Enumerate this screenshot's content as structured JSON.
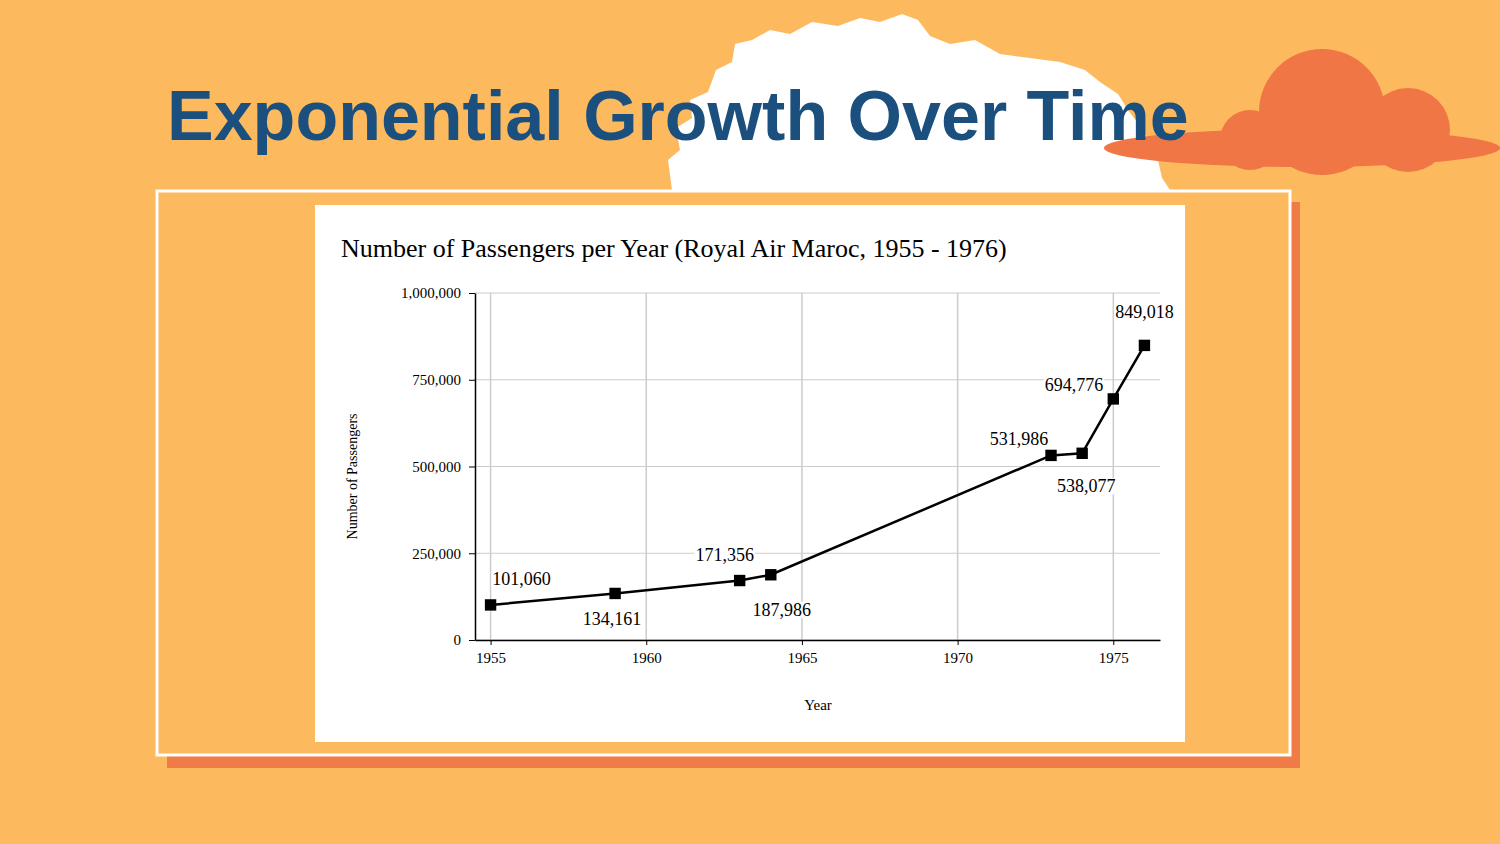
{
  "slide": {
    "title": "Exponential Growth Over Time"
  },
  "chart_data": {
    "type": "line",
    "title": "Number of Passengers per Year (Royal Air Maroc, 1955 - 1976)",
    "x_label": "Year",
    "y_label": "Number of Passengers",
    "x": [
      1955,
      1959,
      1963,
      1964,
      1973,
      1974,
      1975,
      1976
    ],
    "values": [
      101060,
      134161,
      171356,
      187986,
      531986,
      538077,
      694776,
      849018
    ],
    "value_labels": [
      "101,060",
      "134,161",
      "171,356",
      "187,986",
      "531,986",
      "538,077",
      "694,776",
      "849,018"
    ],
    "color": "#000000",
    "marker": "square",
    "line_style": "solid",
    "data_labels": true,
    "grid": true,
    "xlim": [
      1954.5,
      1976.5
    ],
    "xticks": [
      1955,
      1960,
      1965,
      1970,
      1975
    ],
    "ylim": [
      0,
      1000000
    ],
    "yticks": [
      0,
      {
        "value": 250000,
        "label": "250,000"
      },
      {
        "value": 500000,
        "label": "500,000"
      },
      {
        "value": 750000,
        "label": "750,000"
      },
      {
        "value": 1000000,
        "label": "1,000,000"
      }
    ]
  }
}
